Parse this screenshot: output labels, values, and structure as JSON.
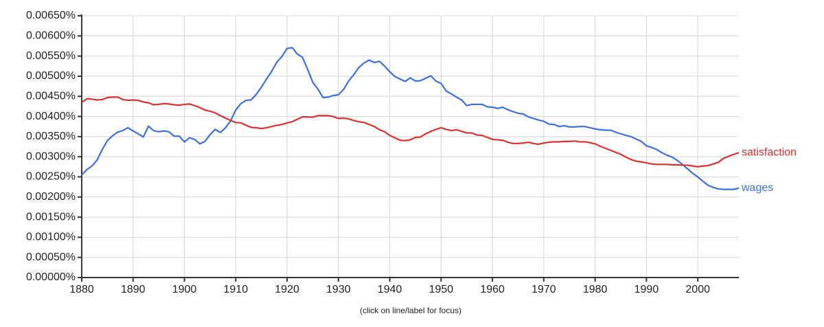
{
  "chart_data": {
    "type": "line",
    "caption": "(click on line/label for focus)",
    "x": [
      1880,
      1881,
      1882,
      1883,
      1884,
      1885,
      1886,
      1887,
      1888,
      1889,
      1890,
      1891,
      1892,
      1893,
      1894,
      1895,
      1896,
      1897,
      1898,
      1899,
      1900,
      1901,
      1902,
      1903,
      1904,
      1905,
      1906,
      1907,
      1908,
      1909,
      1910,
      1911,
      1912,
      1913,
      1914,
      1915,
      1916,
      1917,
      1918,
      1919,
      1920,
      1921,
      1922,
      1923,
      1924,
      1925,
      1926,
      1927,
      1928,
      1929,
      1930,
      1931,
      1932,
      1933,
      1934,
      1935,
      1936,
      1937,
      1938,
      1939,
      1940,
      1941,
      1942,
      1943,
      1944,
      1945,
      1946,
      1947,
      1948,
      1949,
      1950,
      1951,
      1952,
      1953,
      1954,
      1955,
      1956,
      1957,
      1958,
      1959,
      1960,
      1961,
      1962,
      1963,
      1964,
      1965,
      1966,
      1967,
      1968,
      1969,
      1970,
      1971,
      1972,
      1973,
      1974,
      1975,
      1976,
      1977,
      1978,
      1979,
      1980,
      1981,
      1982,
      1983,
      1984,
      1985,
      1986,
      1987,
      1988,
      1989,
      1990,
      1991,
      1992,
      1993,
      1994,
      1995,
      1996,
      1997,
      1998,
      1999,
      2000,
      2001,
      2002,
      2003,
      2004,
      2005,
      2006,
      2007,
      2008
    ],
    "series": [
      {
        "name": "wages",
        "color": "#3d6fd9",
        "values": [
          0.00255,
          0.00268,
          0.00277,
          0.00292,
          0.00318,
          0.0034,
          0.00352,
          0.00361,
          0.00365,
          0.00372,
          0.00364,
          0.00357,
          0.00349,
          0.00376,
          0.00365,
          0.00362,
          0.00364,
          0.00362,
          0.00351,
          0.00351,
          0.00337,
          0.00347,
          0.00343,
          0.00332,
          0.00338,
          0.00355,
          0.00368,
          0.0036,
          0.00372,
          0.00389,
          0.00416,
          0.00432,
          0.0044,
          0.00441,
          0.00455,
          0.00473,
          0.00493,
          0.00512,
          0.00535,
          0.00549,
          0.00569,
          0.00571,
          0.00555,
          0.00547,
          0.00517,
          0.00485,
          0.00468,
          0.00447,
          0.00448,
          0.00452,
          0.00454,
          0.00467,
          0.00488,
          0.00504,
          0.00522,
          0.00533,
          0.0054,
          0.00534,
          0.00537,
          0.00525,
          0.00511,
          0.00499,
          0.00493,
          0.00487,
          0.00496,
          0.00488,
          0.00489,
          0.00495,
          0.00501,
          0.00488,
          0.00482,
          0.00463,
          0.00456,
          0.00448,
          0.00441,
          0.00427,
          0.0043,
          0.0043,
          0.0043,
          0.00424,
          0.00423,
          0.0042,
          0.00423,
          0.00417,
          0.00412,
          0.00408,
          0.00406,
          0.00399,
          0.00395,
          0.00391,
          0.00388,
          0.00381,
          0.0038,
          0.00375,
          0.00377,
          0.00374,
          0.00374,
          0.00375,
          0.00375,
          0.00372,
          0.00369,
          0.00367,
          0.00366,
          0.00366,
          0.00361,
          0.00357,
          0.00353,
          0.0035,
          0.00344,
          0.00338,
          0.00327,
          0.00323,
          0.00318,
          0.0031,
          0.00304,
          0.00299,
          0.00291,
          0.00281,
          0.0027,
          0.00259,
          0.0025,
          0.00239,
          0.00229,
          0.00224,
          0.0022,
          0.00219,
          0.00219,
          0.00219,
          0.00222
        ]
      },
      {
        "name": "satisfaction",
        "color": "#d6312f",
        "values": [
          0.00435,
          0.00444,
          0.00443,
          0.00441,
          0.00442,
          0.00447,
          0.00448,
          0.00448,
          0.00442,
          0.0044,
          0.00441,
          0.0044,
          0.00436,
          0.00434,
          0.00429,
          0.0043,
          0.00432,
          0.00431,
          0.00429,
          0.00428,
          0.0043,
          0.00431,
          0.00427,
          0.00422,
          0.00416,
          0.00413,
          0.00409,
          0.00402,
          0.00396,
          0.0039,
          0.00385,
          0.00384,
          0.00378,
          0.00373,
          0.00372,
          0.0037,
          0.00372,
          0.00375,
          0.00378,
          0.0038,
          0.00384,
          0.00387,
          0.00393,
          0.00399,
          0.00399,
          0.00398,
          0.00402,
          0.00402,
          0.00402,
          0.004,
          0.00395,
          0.00396,
          0.00394,
          0.0039,
          0.00387,
          0.00385,
          0.0038,
          0.00375,
          0.00367,
          0.00362,
          0.00353,
          0.00347,
          0.00341,
          0.0034,
          0.00342,
          0.00348,
          0.00349,
          0.00357,
          0.00363,
          0.00368,
          0.00372,
          0.00368,
          0.00365,
          0.00367,
          0.00363,
          0.00359,
          0.00359,
          0.00354,
          0.00353,
          0.00348,
          0.00343,
          0.00342,
          0.00341,
          0.00336,
          0.00333,
          0.00333,
          0.00334,
          0.00336,
          0.00333,
          0.00331,
          0.00334,
          0.00336,
          0.00337,
          0.00337,
          0.00338,
          0.00338,
          0.00339,
          0.00337,
          0.00337,
          0.00335,
          0.00332,
          0.00326,
          0.00321,
          0.00316,
          0.00311,
          0.00306,
          0.00299,
          0.00293,
          0.00289,
          0.00287,
          0.00285,
          0.00282,
          0.00281,
          0.00281,
          0.00281,
          0.0028,
          0.0028,
          0.00279,
          0.00279,
          0.00277,
          0.00275,
          0.00277,
          0.00278,
          0.00282,
          0.00286,
          0.00296,
          0.00301,
          0.00306,
          0.0031
        ]
      }
    ],
    "xlim": [
      1880,
      2008
    ],
    "xticks": [
      1880,
      1890,
      1900,
      1910,
      1920,
      1930,
      1940,
      1950,
      1960,
      1970,
      1980,
      1990,
      2000
    ],
    "ylim": [
      0,
      0.0065
    ],
    "yticks": [
      {
        "value": 0,
        "label": "0.00000%"
      },
      {
        "value": 0.0005,
        "label": "0.00050%"
      },
      {
        "value": 0.001,
        "label": "0.00100%"
      },
      {
        "value": 0.0015,
        "label": "0.00150%"
      },
      {
        "value": 0.002,
        "label": "0.00200%"
      },
      {
        "value": 0.0025,
        "label": "0.00250%"
      },
      {
        "value": 0.003,
        "label": "0.00300%"
      },
      {
        "value": 0.0035,
        "label": "0.00350%"
      },
      {
        "value": 0.004,
        "label": "0.00400%"
      },
      {
        "value": 0.0045,
        "label": "0.00450%"
      },
      {
        "value": 0.005,
        "label": "0.00500%"
      },
      {
        "value": 0.0055,
        "label": "0.00550%"
      },
      {
        "value": 0.006,
        "label": "0.00600%"
      },
      {
        "value": 0.0065,
        "label": "0.00650%"
      }
    ],
    "grid": true
  }
}
